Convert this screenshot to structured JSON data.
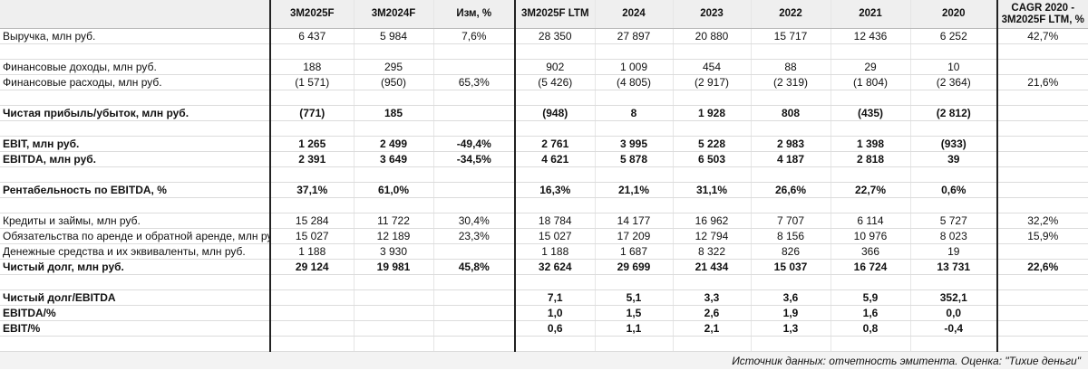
{
  "table": {
    "columns": [
      "3M2025F",
      "3M2024F",
      "Изм, %",
      "3M2025F LTM",
      "2024",
      "2023",
      "2022",
      "2021",
      "2020",
      "CAGR 2020 -\n3M2025F LTM, %"
    ],
    "rows": [
      {
        "label": "Выручка, млн руб.",
        "cells": [
          "6 437",
          "5 984",
          "7,6%",
          "28 350",
          "27 897",
          "20 880",
          "15 717",
          "12 436",
          "6 252",
          "42,7%"
        ]
      },
      null,
      {
        "label": "Финансовые доходы, млн руб.",
        "cells": [
          "188",
          "295",
          null,
          "902",
          "1 009",
          "454",
          "88",
          "29",
          "10",
          null
        ]
      },
      {
        "label": "Финансовые расходы, млн руб.",
        "cells": [
          "(1 571)",
          "(950)",
          "65,3%",
          "(5 426)",
          "(4 805)",
          "(2 917)",
          "(2 319)",
          "(1 804)",
          "(2 364)",
          "21,6%"
        ]
      },
      null,
      {
        "label": "Чистая прибыль/убыток, млн руб.",
        "bold": true,
        "cells": [
          "(771)",
          "185",
          null,
          "(948)",
          "8",
          "1 928",
          "808",
          "(435)",
          "(2 812)",
          null
        ]
      },
      null,
      {
        "label": "EBIT, млн руб.",
        "bold": true,
        "cells": [
          "1 265",
          "2 499",
          "-49,4%",
          "2 761",
          "3 995",
          "5 228",
          "2 983",
          "1 398",
          "(933)",
          null
        ]
      },
      {
        "label": "EBITDA, млн руб.",
        "bold": true,
        "cells": [
          "2 391",
          "3 649",
          "-34,5%",
          "4 621",
          "5 878",
          "6 503",
          "4 187",
          "2 818",
          "39",
          null
        ]
      },
      null,
      {
        "label": "Рентабельность по EBITDA, %",
        "bold": true,
        "cells": [
          "37,1%",
          "61,0%",
          null,
          "16,3%",
          "21,1%",
          "31,1%",
          "26,6%",
          "22,7%",
          "0,6%",
          null
        ]
      },
      null,
      {
        "label": "Кредиты и займы, млн руб.",
        "cells": [
          "15 284",
          "11 722",
          "30,4%",
          "18 784",
          "14 177",
          "16 962",
          "7 707",
          "6 114",
          "5 727",
          "32,2%"
        ]
      },
      {
        "label": "Обязательства по аренде и обратной аренде, млн руб.",
        "cells": [
          "15 027",
          "12 189",
          "23,3%",
          "15 027",
          "17 209",
          "12 794",
          "8 156",
          "10 976",
          "8 023",
          "15,9%"
        ]
      },
      {
        "label": "Денежные средства и их эквиваленты, млн руб.",
        "cells": [
          "1 188",
          "3 930",
          null,
          "1 188",
          "1 687",
          "8 322",
          "826",
          "366",
          "19",
          null
        ]
      },
      {
        "label": "Чистый долг, млн руб.",
        "bold": true,
        "cells": [
          "29 124",
          "19 981",
          "45,8%",
          "32 624",
          "29 699",
          "21 434",
          "15 037",
          "16 724",
          "13 731",
          "22,6%"
        ]
      },
      null,
      {
        "label": "Чистый долг/EBITDA",
        "bold": true,
        "cells": [
          null,
          null,
          null,
          "7,1",
          "5,1",
          "3,3",
          "3,6",
          "5,9",
          "352,1",
          null
        ]
      },
      {
        "label": "EBITDA/%",
        "bold": true,
        "cells": [
          null,
          null,
          null,
          "1,0",
          "1,5",
          "2,6",
          "1,9",
          "1,6",
          "0,0",
          null
        ]
      },
      {
        "label": "EBIT/%",
        "bold": true,
        "cells": [
          null,
          null,
          null,
          "0,6",
          "1,1",
          "2,1",
          "1,3",
          "0,8",
          "-0,4",
          null
        ]
      },
      null
    ],
    "source": "Источник данных: отчетность эмитента. Оценка: \"Тихие деньги\""
  }
}
